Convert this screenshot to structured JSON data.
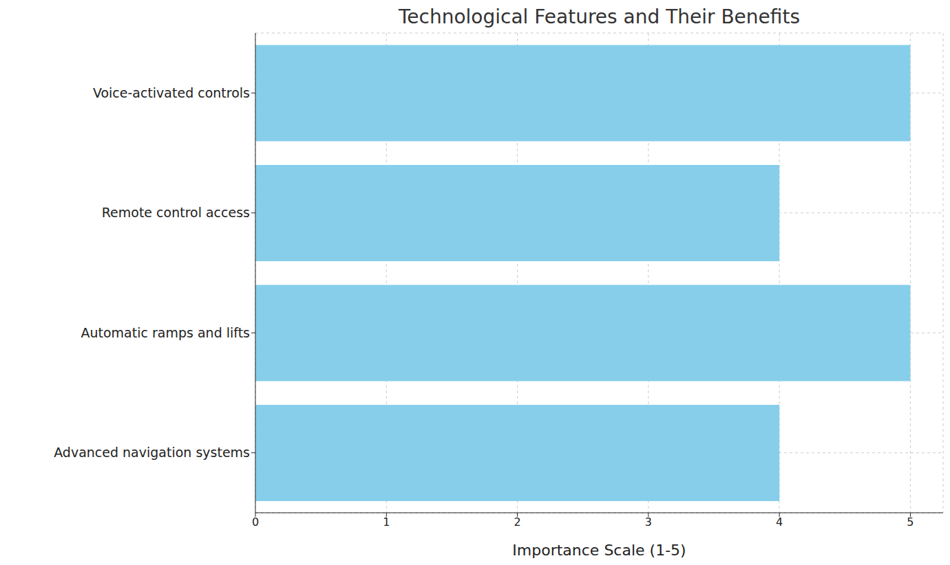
{
  "chart_data": {
    "type": "bar",
    "title": "Technological Features and Their Benefits",
    "x_label": "Importance Scale (1-5)",
    "categories": [
      "Voice-activated controls",
      "Remote control access",
      "Automatic ramps and lifts",
      "Advanced navigation systems"
    ],
    "values": [
      5,
      4,
      5,
      4
    ],
    "color": "#87ceeb",
    "orientation": "horizontal",
    "xlim": [
      0,
      5.25
    ],
    "xticks": [
      0,
      1,
      2,
      3,
      4,
      5
    ],
    "grid": true
  }
}
